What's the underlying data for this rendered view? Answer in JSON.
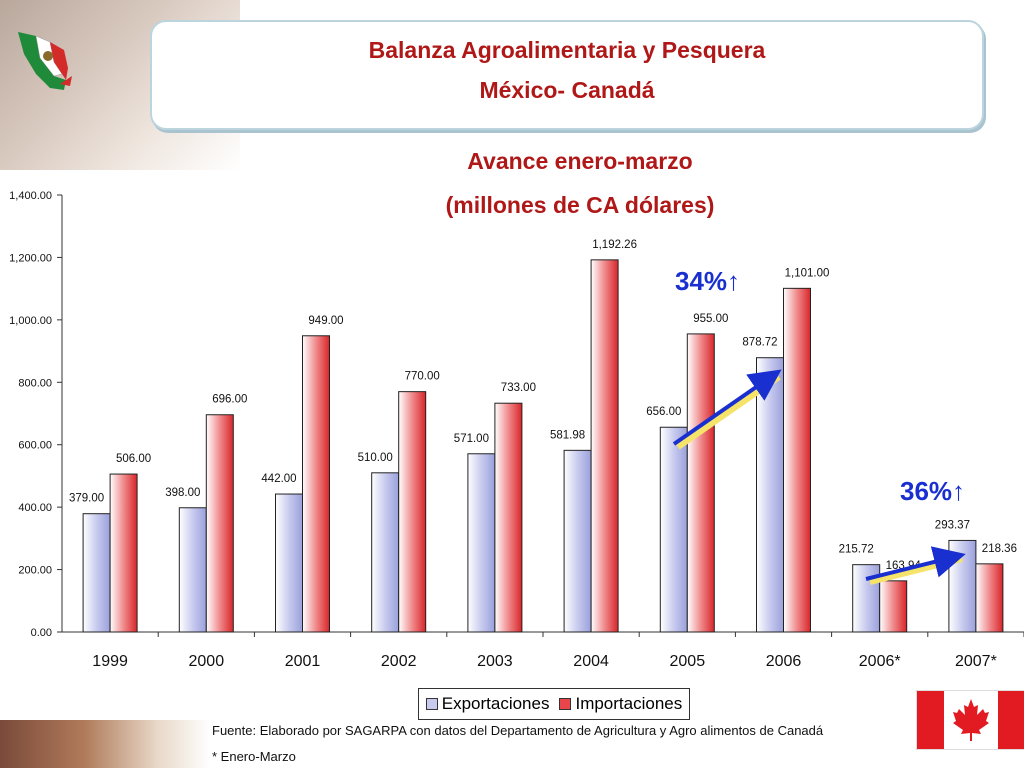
{
  "header": {
    "title_line1": "Balanza Agroalimentaria y Pesquera",
    "title_line2": "México- Canadá"
  },
  "chart_data": {
    "type": "bar",
    "title": "Avance enero-marzo",
    "subtitle": "(millones de CA dólares)",
    "categories": [
      "1999",
      "2000",
      "2001",
      "2002",
      "2003",
      "2004",
      "2005",
      "2006",
      "2006*",
      "2007*"
    ],
    "series": [
      {
        "name": "Exportaciones",
        "values": [
          379.0,
          398.0,
          442.0,
          510.0,
          571.0,
          581.98,
          656.0,
          878.72,
          215.72,
          293.37
        ],
        "labels": [
          "379.00",
          "398.00",
          "442.00",
          "510.00",
          "571.00",
          "581.98",
          "656.00",
          "878.72",
          "215.72",
          "293.37"
        ],
        "color": "#c8cbee"
      },
      {
        "name": "Importaciones",
        "values": [
          506.0,
          696.0,
          949.0,
          770.0,
          733.0,
          1192.26,
          955.0,
          1101.0,
          163.94,
          218.36
        ],
        "labels": [
          "506.00",
          "696.00",
          "949.00",
          "770.00",
          "733.00",
          "1,192.26",
          "955.00",
          "1,101.00",
          "163.94",
          "218.36"
        ],
        "color": "#e8464a"
      }
    ],
    "ylim": [
      0,
      1400
    ],
    "yticks": [
      "0.00",
      "200.00",
      "400.00",
      "600.00",
      "800.00",
      "1,000.00",
      "1,200.00",
      "1,400.00"
    ],
    "legend": "bottom",
    "grid": false,
    "annotations": [
      {
        "text": "34%↑"
      },
      {
        "text": "36%↑"
      }
    ]
  },
  "footnotes": {
    "source": "Fuente: Elaborado por SAGARPA con datos del Departamento de Agricultura y Agro alimentos de Canadá",
    "note": "* Enero-Marzo"
  },
  "icons": {
    "mexico_flag": "mexico-map-flag-icon",
    "canada_flag": "canada-flag-icon"
  }
}
